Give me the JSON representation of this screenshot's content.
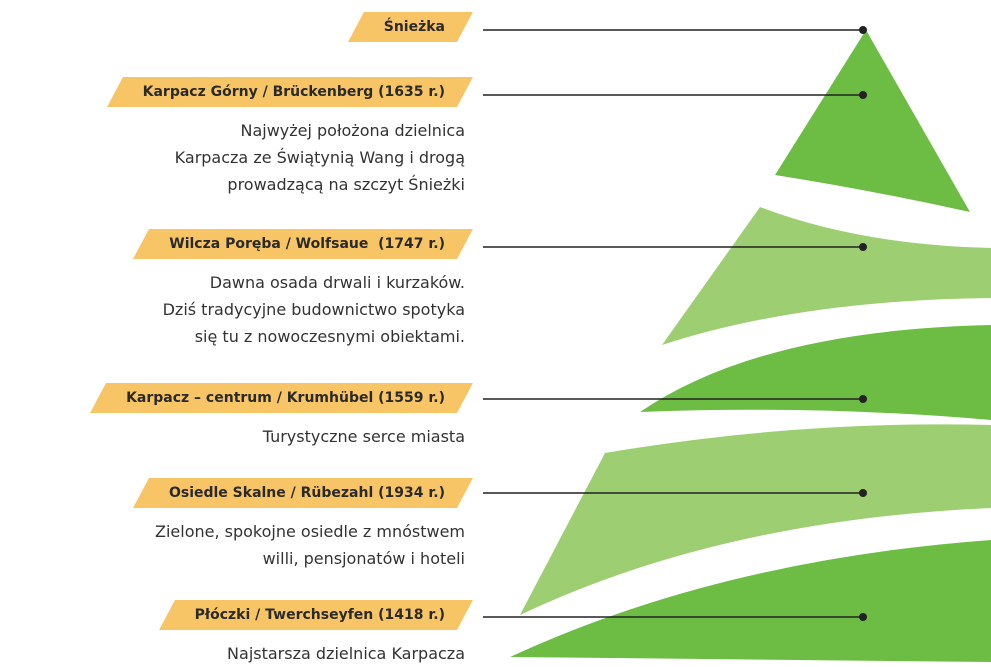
{
  "items": [
    {
      "label": "Śnieżka",
      "description": []
    },
    {
      "label": "Karpacz Górny / Brückenberg (1635 r.)",
      "description": [
        "Najwyżej położona dzielnica",
        "Karpacza ze Świątynią Wang i drogą",
        "prowadzącą na szczyt Śnieżki"
      ]
    },
    {
      "label": "Wilcza Poręba / Wolfsaue  (1747 r.)",
      "description": [
        "Dawna osada drwali i kurzaków.",
        "Dziś tradycyjne budownictwo spotyka",
        "się tu z nowoczesnymi obiektami."
      ]
    },
    {
      "label": "Karpacz – centrum / Krumhübel (1559 r.)",
      "description": [
        "Turystyczne serce miasta"
      ]
    },
    {
      "label": "Osiedle Skalne / Rübezahl (1934 r.)",
      "description": [
        "Zielone, spokojne osiedle z mnóstwem",
        "willi, pensjonatów i hoteli"
      ]
    },
    {
      "label": "Płóczki / Twerchseyfen (1418 r.)",
      "description": [
        "Najstarsza dzielnica Karpacza"
      ]
    }
  ]
}
